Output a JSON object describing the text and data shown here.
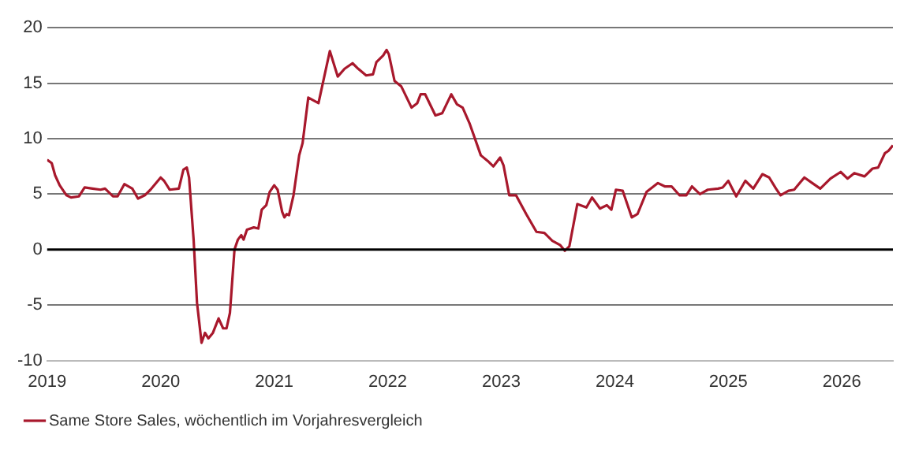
{
  "chart_data": {
    "type": "line",
    "x": [
      2019.0,
      2019.04,
      2019.07,
      2019.11,
      2019.17,
      2019.21,
      2019.28,
      2019.33,
      2019.4,
      2019.47,
      2019.51,
      2019.58,
      2019.62,
      2019.68,
      2019.75,
      2019.8,
      2019.86,
      2019.91,
      2020.0,
      2020.03,
      2020.08,
      2020.16,
      2020.2,
      2020.23,
      2020.25,
      2020.29,
      2020.32,
      2020.36,
      2020.39,
      2020.42,
      2020.46,
      2020.51,
      2020.55,
      2020.58,
      2020.61,
      2020.65,
      2020.68,
      2020.71,
      2020.73,
      2020.76,
      2020.82,
      2020.86,
      2020.89,
      2020.93,
      2020.96,
      2021.0,
      2021.03,
      2021.07,
      2021.09,
      2021.11,
      2021.13,
      2021.17,
      2021.22,
      2021.25,
      2021.3,
      2021.39,
      2021.49,
      2021.56,
      2021.62,
      2021.69,
      2021.74,
      2021.81,
      2021.87,
      2021.9,
      2021.96,
      2021.99,
      2022.01,
      2022.06,
      2022.12,
      2022.21,
      2022.26,
      2022.29,
      2022.33,
      2022.42,
      2022.48,
      2022.56,
      2022.61,
      2022.66,
      2022.72,
      2022.82,
      2022.88,
      2022.93,
      2022.99,
      2023.02,
      2023.07,
      2023.13,
      2023.22,
      2023.31,
      2023.38,
      2023.45,
      2023.52,
      2023.56,
      2023.6,
      2023.67,
      2023.75,
      2023.8,
      2023.87,
      2023.93,
      2023.97,
      2024.01,
      2024.07,
      2024.15,
      2024.2,
      2024.28,
      2024.38,
      2024.44,
      2024.5,
      2024.57,
      2024.63,
      2024.68,
      2024.75,
      2024.82,
      2024.91,
      2024.95,
      2025.0,
      2025.07,
      2025.15,
      2025.22,
      2025.3,
      2025.36,
      2025.42,
      2025.46,
      2025.53,
      2025.58,
      2025.67,
      2025.74,
      2025.81,
      2025.9,
      2025.99,
      2026.05,
      2026.11,
      2026.2,
      2026.27,
      2026.32,
      2026.38,
      2026.41,
      2026.45
    ],
    "series": [
      {
        "name": "Same Store Sales, wöchentlich im Vorjahresvergleich",
        "color": "#a8182c",
        "values": [
          8.1,
          7.8,
          6.7,
          5.8,
          4.9,
          4.7,
          4.8,
          5.6,
          5.5,
          5.4,
          5.5,
          4.8,
          4.8,
          5.9,
          5.5,
          4.6,
          4.9,
          5.4,
          6.5,
          6.2,
          5.4,
          5.5,
          7.2,
          7.4,
          6.5,
          0.9,
          -4.8,
          -8.4,
          -7.5,
          -8.0,
          -7.5,
          -6.2,
          -7.1,
          -7.1,
          -5.7,
          0.0,
          0.9,
          1.3,
          0.9,
          1.8,
          2.0,
          1.9,
          3.6,
          4.0,
          5.2,
          5.8,
          5.4,
          3.4,
          2.9,
          3.2,
          3.1,
          4.9,
          8.5,
          9.6,
          13.7,
          13.2,
          17.9,
          15.6,
          16.3,
          16.8,
          16.3,
          15.7,
          15.8,
          16.9,
          17.5,
          18.0,
          17.6,
          15.2,
          14.7,
          12.8,
          13.2,
          14.0,
          14.0,
          12.1,
          12.3,
          14.0,
          13.1,
          12.8,
          11.4,
          8.5,
          8.0,
          7.5,
          8.3,
          7.6,
          4.9,
          4.9,
          3.2,
          1.6,
          1.5,
          0.8,
          0.4,
          -0.1,
          0.3,
          4.1,
          3.8,
          4.7,
          3.7,
          4.0,
          3.6,
          5.4,
          5.3,
          2.9,
          3.2,
          5.2,
          6.0,
          5.7,
          5.7,
          4.9,
          4.9,
          5.7,
          5.0,
          5.4,
          5.5,
          5.6,
          6.2,
          4.8,
          6.2,
          5.5,
          6.8,
          6.5,
          5.5,
          4.9,
          5.3,
          5.4,
          6.5,
          6.0,
          5.5,
          6.4,
          7.0,
          6.4,
          6.9,
          6.6,
          7.3,
          7.4,
          8.7,
          8.9,
          9.4
        ]
      }
    ],
    "xlim": [
      2019,
      2026.45
    ],
    "xticks": [
      2019,
      2020,
      2021,
      2022,
      2023,
      2024,
      2025,
      2026
    ],
    "ylim": [
      -10,
      20
    ],
    "yticks": [
      -10,
      -5,
      0,
      5,
      10,
      15,
      20
    ],
    "ref_lines": [
      {
        "axis": "y",
        "value": 0,
        "color": "#000000"
      }
    ],
    "grid": "y",
    "legend": "bottom left",
    "marker": "none",
    "line_style": "solid"
  }
}
